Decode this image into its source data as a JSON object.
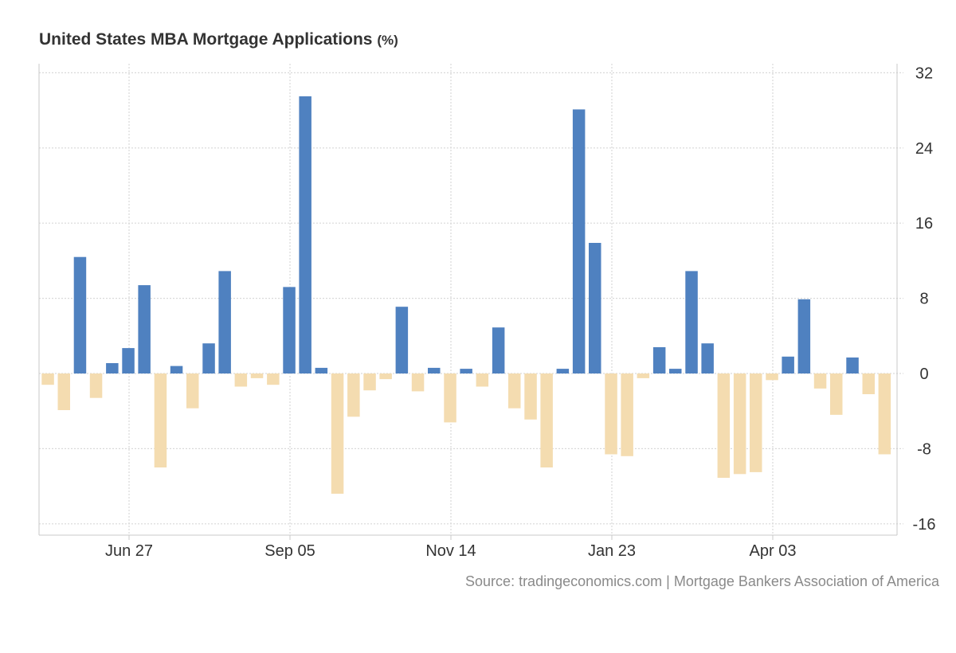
{
  "chart_title": "United States MBA Mortgage Applications",
  "chart_unit": "(%)",
  "source_text": "Source: tradingeconomics.com | Mortgage Bankers Association of America",
  "colors": {
    "positive": "#4f81c0",
    "negative": "#f4dcb0",
    "grid": "#d9d9d9",
    "axis": "#c8c8c8",
    "label": "#333333"
  },
  "chart_data": {
    "type": "bar",
    "title": "United States MBA Mortgage Applications",
    "unit": "%",
    "ylim": [
      -16,
      32
    ],
    "y_ticks": [
      32,
      24,
      16,
      8,
      0,
      -8,
      -16
    ],
    "y_axis_position": "right",
    "x_tick_labels": [
      "Jun 27",
      "Sep 05",
      "Nov 14",
      "Jan 23",
      "Apr 03"
    ],
    "x_tick_indices": [
      5,
      15,
      25,
      35,
      45
    ],
    "grid": true,
    "legend": "none",
    "values": [
      -1.2,
      -3.9,
      12.4,
      -2.6,
      1.1,
      2.7,
      9.4,
      -10,
      0.8,
      -3.7,
      3.2,
      10.9,
      -1.4,
      -0.5,
      -1.2,
      9.2,
      29.5,
      0.6,
      -12.8,
      -4.6,
      -1.8,
      -0.6,
      7.1,
      -1.9,
      0.6,
      -5.2,
      0.5,
      -1.4,
      4.9,
      -3.7,
      -4.9,
      -10,
      0.5,
      28.1,
      13.9,
      -8.6,
      -8.8,
      -0.5,
      2.8,
      0.5,
      10.9,
      3.2,
      -11.1,
      -10.7,
      -10.5,
      -0.7,
      1.8,
      7.9,
      -1.6,
      -4.4,
      1.7,
      -2.2,
      -8.6
    ]
  }
}
